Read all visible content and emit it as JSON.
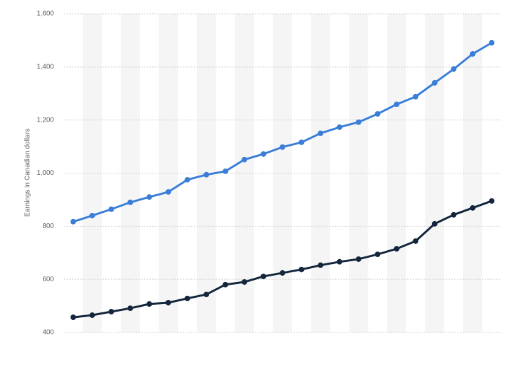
{
  "chart_data": {
    "type": "line",
    "y_label": "Earnings in Canadian dollars",
    "categories": [
      null,
      null,
      null,
      null,
      null,
      null,
      null,
      null,
      null,
      null,
      null,
      null,
      null,
      null,
      null,
      null,
      null,
      null,
      null,
      null,
      null,
      null,
      null
    ],
    "series": [
      {
        "color": "#3a7ed8",
        "values": [
          817,
          840,
          864,
          890,
          910,
          929,
          975,
          994,
          1007,
          1051,
          1072,
          1098,
          1116,
          1150,
          1173,
          1192,
          1223,
          1259,
          1288,
          1340,
          1392,
          1449,
          1491
        ]
      },
      {
        "color": "#14263d",
        "values": [
          457,
          465,
          478,
          491,
          507,
          512,
          528,
          543,
          580,
          590,
          611,
          624,
          637,
          653,
          666,
          676,
          694,
          715,
          744,
          809,
          843,
          869,
          895
        ]
      }
    ],
    "ylim": [
      400,
      1600
    ],
    "yticks": [
      400,
      600,
      800,
      {
        "value": 1000,
        "label": "1,000"
      },
      {
        "value": 1200,
        "label": "1,200"
      },
      {
        "value": 1400,
        "label": "1,400"
      },
      {
        "value": 1600,
        "label": "1,600"
      }
    ],
    "grid": true
  }
}
